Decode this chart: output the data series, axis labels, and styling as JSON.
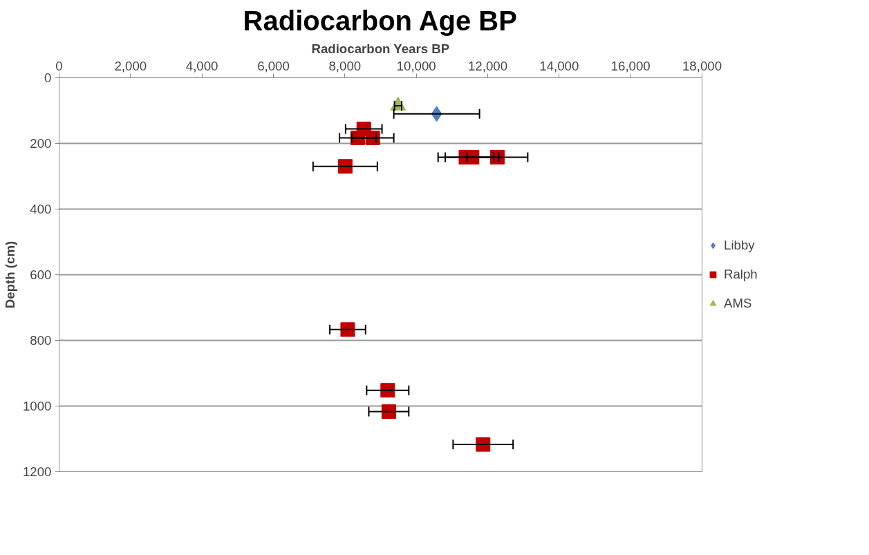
{
  "chart_data": {
    "type": "scatter",
    "title": "Radiocarbon Age BP",
    "xlabel": "Radiocarbon Years BP",
    "ylabel": "Depth (cm)",
    "xlim": [
      0,
      18000
    ],
    "xticks": [
      {
        "value": 0,
        "label": "0"
      },
      {
        "value": 2000,
        "label": "2,000"
      },
      {
        "value": 4000,
        "label": "4,000"
      },
      {
        "value": 6000,
        "label": "6,000"
      },
      {
        "value": 8000,
        "label": "8,000"
      },
      {
        "value": 10000,
        "label": "10,000"
      },
      {
        "value": 12000,
        "label": "12,000"
      },
      {
        "value": 14000,
        "label": "14,000"
      },
      {
        "value": 16000,
        "label": "16,000"
      },
      {
        "value": 18000,
        "label": "18,000"
      }
    ],
    "ylim": [
      1200,
      0
    ],
    "yticks": [
      0,
      200,
      400,
      600,
      800,
      1000,
      1200
    ],
    "grid": "y",
    "legend": "right",
    "series": [
      {
        "name": "Libby",
        "color": "#4f81bd",
        "marker": "diamond",
        "x": [
          10570
        ],
        "values": [
          110
        ],
        "xerrors": [
          1200
        ]
      },
      {
        "name": "Ralph",
        "color": "#c00000",
        "marker": "square",
        "x": [
          8530,
          8360,
          8780,
          8010,
          11390,
          11560,
          12270,
          8080,
          9200,
          9230,
          11870
        ],
        "values": [
          156,
          183,
          183,
          270,
          242,
          242,
          242,
          767,
          952,
          1017,
          1117
        ],
        "xerrors": [
          510,
          510,
          590,
          900,
          780,
          750,
          850,
          500,
          590,
          560,
          840
        ]
      },
      {
        "name": "AMS",
        "color": "#9bbb59",
        "marker": "triangle",
        "x": [
          9490
        ],
        "values": [
          85
        ],
        "xerrors": [
          100
        ]
      }
    ]
  }
}
